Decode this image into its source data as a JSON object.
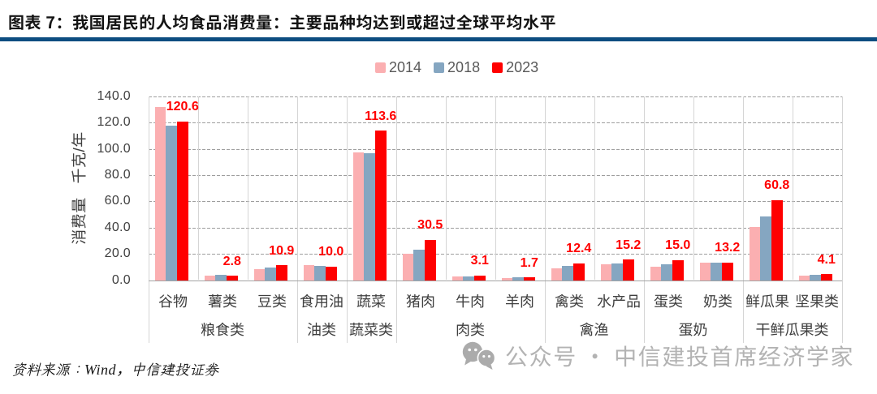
{
  "header": {
    "title": "图表 7：我国居民的人均食品消费量：主要品种均达到或超过全球平均水平"
  },
  "chart_data": {
    "type": "bar",
    "title": "图表 7：我国居民的人均食品消费量：主要品种均达到或超过全球平均水平",
    "ylabel": "消费量 千克/年",
    "ylim": [
      0,
      140
    ],
    "ytick_step": 20,
    "ytick_format": "one-decimal",
    "grid": "horizontal-dashed",
    "legend_position": "top",
    "categories": [
      "谷物",
      "薯类",
      "豆类",
      "食用油",
      "蔬菜",
      "猪肉",
      "牛肉",
      "羊肉",
      "禽类",
      "水产品",
      "蛋类",
      "奶类",
      "鲜瓜果",
      "坚果类"
    ],
    "category_groups": [
      {
        "label": "粮食类",
        "span": [
          0,
          2
        ]
      },
      {
        "label": "油类",
        "span": [
          3,
          3
        ]
      },
      {
        "label": "蔬菜类",
        "span": [
          4,
          4
        ]
      },
      {
        "label": "肉类",
        "span": [
          5,
          7
        ]
      },
      {
        "label": "禽渔",
        "span": [
          8,
          9
        ]
      },
      {
        "label": "蛋奶",
        "span": [
          10,
          11
        ]
      },
      {
        "label": "干鲜瓜果类",
        "span": [
          12,
          13
        ]
      }
    ],
    "series": [
      {
        "name": "2014",
        "color": "#fbafb1",
        "values": [
          131.7,
          2.9,
          7.9,
          11.2,
          97.2,
          20.0,
          2.2,
          1.2,
          8.8,
          11.4,
          9.9,
          12.9,
          40.0,
          3.2
        ]
      },
      {
        "name": "2018",
        "color": "#85a6c1",
        "values": [
          117.3,
          3.8,
          9.1,
          10.3,
          96.2,
          22.8,
          2.7,
          1.5,
          10.3,
          12.3,
          11.8,
          13.1,
          48.1,
          3.8
        ]
      },
      {
        "name": "2023",
        "color": "#ff0000",
        "data_labels": true,
        "values": [
          120.6,
          2.8,
          10.9,
          10.0,
          113.6,
          30.5,
          3.1,
          1.7,
          12.4,
          15.2,
          15.0,
          13.2,
          60.8,
          4.1
        ],
        "labels": [
          "120.6",
          "2.8",
          "10.9",
          "10.0",
          "113.6",
          "30.5",
          "3.1",
          "1.7",
          "12.4",
          "15.2",
          "15.0",
          "13.2",
          "60.8",
          "4.1"
        ]
      }
    ]
  },
  "footer": {
    "source_prefix": "资料来源：",
    "source_vendor": "Wind",
    "source_suffix": "，中信建投证券"
  },
  "watermark": {
    "icon": "wechat-icon",
    "text": "公众号 · 中信建投首席经济学家"
  },
  "colors": {
    "accent_rule": "#0d4d80",
    "series_2014": "#fbafb1",
    "series_2018": "#85a6c1",
    "series_2023": "#ff0000",
    "data_label": "#ff0000",
    "watermark": "#b3b3b3"
  }
}
